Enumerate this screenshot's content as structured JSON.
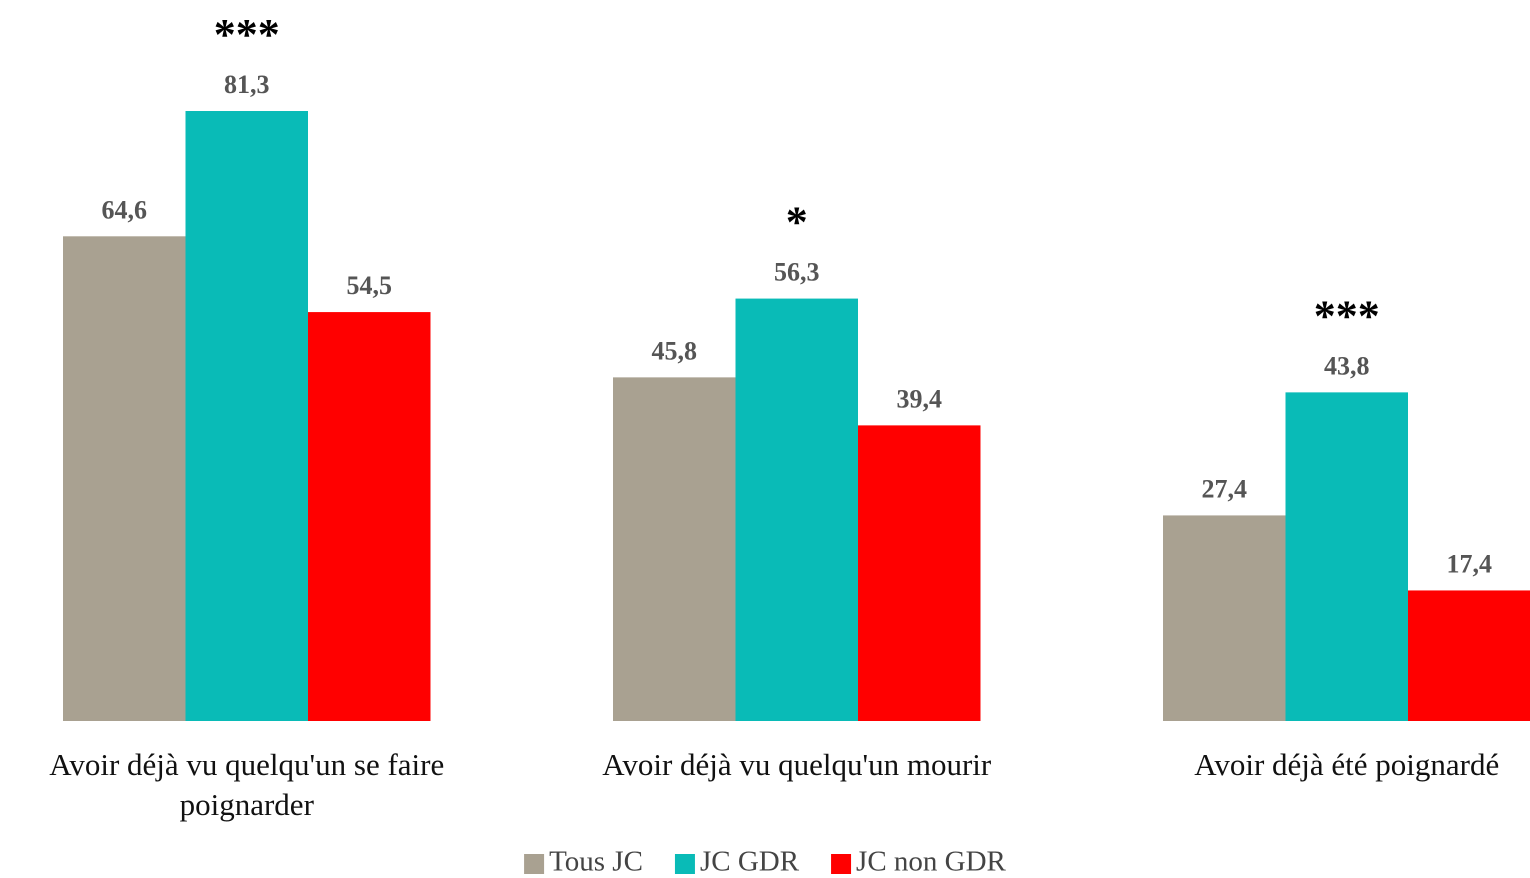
{
  "chart_data": {
    "type": "bar",
    "categories": [
      "Avoir déjà vu quelqu'un se faire poignarder",
      "Avoir déjà vu quelqu'un mourir",
      "Avoir déjà été poignardé"
    ],
    "series": [
      {
        "name": "Tous JC",
        "color": "#a9a191",
        "values": [
          64.6,
          45.8,
          27.4
        ],
        "value_labels": [
          "64,6",
          "45,8",
          "27,4"
        ]
      },
      {
        "name": "JC GDR",
        "color": "#09bbb7",
        "values": [
          81.3,
          56.3,
          43.8
        ],
        "value_labels": [
          "81,3",
          "56,3",
          "43,8"
        ]
      },
      {
        "name": "JC non GDR",
        "color": "#ff0000",
        "values": [
          54.5,
          39.4,
          17.4
        ],
        "value_labels": [
          "54,5",
          "39,4",
          "17,4"
        ]
      }
    ],
    "annotations": [
      "***",
      "*",
      "***"
    ],
    "legend": "bottom"
  }
}
